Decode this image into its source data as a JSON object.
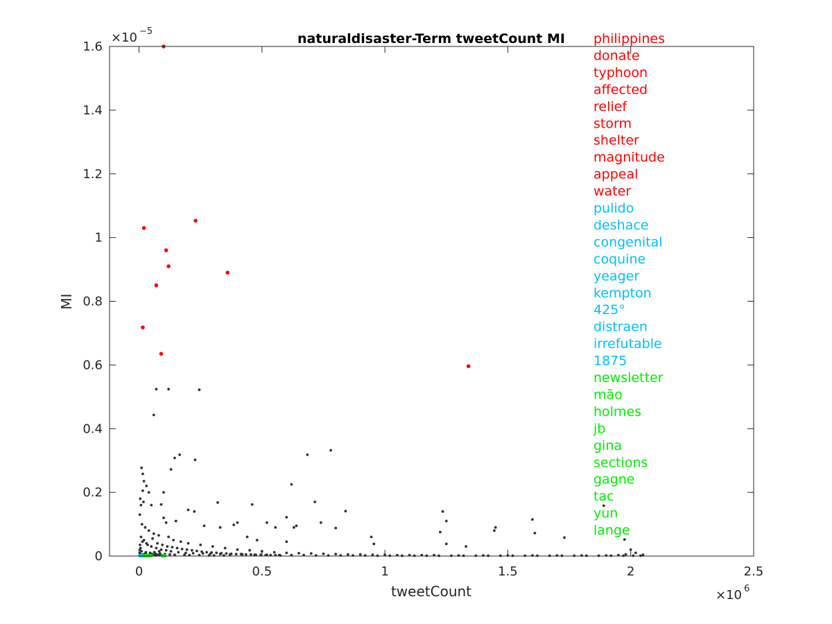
{
  "chart_data": {
    "type": "scatter",
    "title": "naturaldisaster-Term tweetCount MI",
    "xlabel": "tweetCount",
    "ylabel": "MI",
    "x_multiplier": "×10",
    "x_exponent": "6",
    "y_multiplier": "×10",
    "y_exponent": "−5",
    "xlim": [
      -0.12,
      2.5
    ],
    "ylim": [
      0,
      1.6
    ],
    "x_ticks": [
      0,
      0.5,
      1,
      1.5,
      2,
      2.5
    ],
    "x_tick_labels": [
      "0",
      "0.5",
      "1",
      "1.5",
      "2",
      "2.5"
    ],
    "y_ticks": [
      0,
      0.2,
      0.4,
      0.6,
      0.8,
      1,
      1.2,
      1.4,
      1.6
    ],
    "y_tick_labels": [
      "0",
      "0.2",
      "0.4",
      "0.6",
      "0.8",
      "1",
      "1.2",
      "1.4",
      "1.6"
    ],
    "colors": {
      "red": "#ff0000",
      "cyan": "#00bfff",
      "green": "#00ee00",
      "gray": "#333333"
    },
    "series": [
      {
        "group": "red",
        "points": [
          [
            0.1,
            1.6
          ],
          [
            0.02,
            1.03
          ],
          [
            0.23,
            1.053
          ],
          [
            0.11,
            0.96
          ],
          [
            0.12,
            0.91
          ],
          [
            0.36,
            0.89
          ],
          [
            0.07,
            0.85
          ],
          [
            0.015,
            0.718
          ],
          [
            0.09,
            0.635
          ],
          [
            1.34,
            0.596
          ]
        ]
      },
      {
        "group": "cyan",
        "points": [
          [
            0.003,
            0.001
          ],
          [
            0.006,
            0.001
          ],
          [
            0.009,
            0.001
          ],
          [
            0.012,
            0.001
          ],
          [
            0.015,
            0.001
          ],
          [
            0.018,
            0.001
          ],
          [
            0.021,
            0.001
          ],
          [
            0.024,
            0.001
          ],
          [
            0.027,
            0.001
          ],
          [
            0.03,
            0.001
          ]
        ]
      },
      {
        "group": "green",
        "points": [
          [
            0.02,
            0.001
          ],
          [
            0.03,
            0.001
          ],
          [
            0.04,
            0.001
          ],
          [
            0.045,
            0.001
          ],
          [
            0.1,
            0.001
          ],
          [
            0.025,
            0.001
          ],
          [
            0.035,
            0.001
          ],
          [
            0.05,
            0.001
          ],
          [
            0.095,
            0.001
          ],
          [
            0.105,
            0.001
          ]
        ]
      },
      {
        "group": "gray",
        "points": [
          [
            0.07,
            0.524
          ],
          [
            0.12,
            0.524
          ],
          [
            0.245,
            0.522
          ],
          [
            0.06,
            0.443
          ],
          [
            0.165,
            0.318
          ],
          [
            0.145,
            0.308
          ],
          [
            0.228,
            0.302
          ],
          [
            0.13,
            0.272
          ],
          [
            0.685,
            0.318
          ],
          [
            0.78,
            0.332
          ],
          [
            0.62,
            0.225
          ],
          [
            0.715,
            0.17
          ],
          [
            0.32,
            0.168
          ],
          [
            0.46,
            0.162
          ],
          [
            1.235,
            0.14
          ],
          [
            1.25,
            0.11
          ],
          [
            1.45,
            0.09
          ],
          [
            1.6,
            0.115
          ],
          [
            1.61,
            0.072
          ],
          [
            1.445,
            0.08
          ],
          [
            1.73,
            0.058
          ],
          [
            1.89,
            0.158
          ],
          [
            1.975,
            0.052
          ],
          [
            0.84,
            0.141
          ],
          [
            0.8,
            0.088
          ],
          [
            0.6,
            0.122
          ],
          [
            0.555,
            0.09
          ],
          [
            0.945,
            0.06
          ],
          [
            0.955,
            0.038
          ],
          [
            1.225,
            0.075
          ],
          [
            1.25,
            0.038
          ],
          [
            1.33,
            0.03
          ],
          [
            0.01,
            0.277
          ],
          [
            0.015,
            0.258
          ],
          [
            0.02,
            0.235
          ],
          [
            0.03,
            0.22
          ],
          [
            0.015,
            0.205
          ],
          [
            0.04,
            0.2
          ],
          [
            0.1,
            0.2
          ],
          [
            0.005,
            0.18
          ],
          [
            0.008,
            0.16
          ],
          [
            0.018,
            0.17
          ],
          [
            0.05,
            0.16
          ],
          [
            0.09,
            0.162
          ],
          [
            0.1,
            0.12
          ],
          [
            0.11,
            0.105
          ],
          [
            0.15,
            0.11
          ],
          [
            0.2,
            0.145
          ],
          [
            0.225,
            0.14
          ],
          [
            0.265,
            0.095
          ],
          [
            0.4,
            0.105
          ],
          [
            0.33,
            0.09
          ],
          [
            0.52,
            0.105
          ],
          [
            0.64,
            0.095
          ],
          [
            0.74,
            0.105
          ],
          [
            0.385,
            0.098
          ],
          [
            0.63,
            0.09
          ],
          [
            0.44,
            0.06
          ],
          [
            0.48,
            0.05
          ],
          [
            0.6,
            0.045
          ],
          [
            0.003,
            0.13
          ],
          [
            0.012,
            0.1
          ],
          [
            0.025,
            0.09
          ],
          [
            0.04,
            0.08
          ],
          [
            0.06,
            0.07
          ],
          [
            0.08,
            0.065
          ],
          [
            0.12,
            0.06
          ],
          [
            0.14,
            0.05
          ],
          [
            0.17,
            0.045
          ],
          [
            0.2,
            0.04
          ],
          [
            0.25,
            0.035
          ],
          [
            0.3,
            0.03
          ],
          [
            0.35,
            0.025
          ],
          [
            0.4,
            0.02
          ],
          [
            0.45,
            0.018
          ],
          [
            0.5,
            0.015
          ],
          [
            0.55,
            0.012
          ],
          [
            0.6,
            0.01
          ],
          [
            0.65,
            0.009
          ],
          [
            0.7,
            0.008
          ],
          [
            0.75,
            0.007
          ],
          [
            0.8,
            0.006
          ],
          [
            0.85,
            0.005
          ],
          [
            0.9,
            0.005
          ],
          [
            0.95,
            0.004
          ],
          [
            1.0,
            0.004
          ],
          [
            1.05,
            0.003
          ],
          [
            1.1,
            0.003
          ],
          [
            1.15,
            0.003
          ],
          [
            1.2,
            0.003
          ],
          [
            1.3,
            0.002
          ],
          [
            1.4,
            0.002
          ],
          [
            1.5,
            0.002
          ],
          [
            1.6,
            0.002
          ],
          [
            1.7,
            0.002
          ],
          [
            1.8,
            0.002
          ],
          [
            1.9,
            0.002
          ],
          [
            1.95,
            0.003
          ],
          [
            2.0,
            0.02
          ],
          [
            2.02,
            0.01
          ],
          [
            2.05,
            0.004
          ],
          [
            1.98,
            0.005
          ],
          [
            0.02,
            0.05
          ],
          [
            0.03,
            0.04
          ],
          [
            0.05,
            0.03
          ],
          [
            0.07,
            0.025
          ],
          [
            0.09,
            0.02
          ],
          [
            0.11,
            0.018
          ],
          [
            0.13,
            0.015
          ],
          [
            0.16,
            0.012
          ],
          [
            0.19,
            0.01
          ],
          [
            0.22,
            0.009
          ],
          [
            0.26,
            0.008
          ],
          [
            0.29,
            0.007
          ],
          [
            0.33,
            0.006
          ],
          [
            0.37,
            0.005
          ],
          [
            0.42,
            0.005
          ],
          [
            0.47,
            0.004
          ],
          [
            0.52,
            0.004
          ],
          [
            0.57,
            0.003
          ],
          [
            0.62,
            0.003
          ],
          [
            0.67,
            0.003
          ],
          [
            0.72,
            0.002
          ],
          [
            0.77,
            0.002
          ],
          [
            0.82,
            0.002
          ],
          [
            0.87,
            0.002
          ],
          [
            0.92,
            0.002
          ],
          [
            0.97,
            0.001
          ],
          [
            1.02,
            0.001
          ],
          [
            1.07,
            0.001
          ],
          [
            1.12,
            0.001
          ],
          [
            1.17,
            0.001
          ],
          [
            1.22,
            0.001
          ],
          [
            1.27,
            0.001
          ],
          [
            1.32,
            0.001
          ],
          [
            1.37,
            0.001
          ],
          [
            1.42,
            0.001
          ],
          [
            1.47,
            0.001
          ],
          [
            1.52,
            0.001
          ],
          [
            1.57,
            0.001
          ],
          [
            1.62,
            0.001
          ],
          [
            1.67,
            0.001
          ],
          [
            1.72,
            0.001
          ],
          [
            1.77,
            0.001
          ],
          [
            1.82,
            0.001
          ],
          [
            1.87,
            0.001
          ],
          [
            1.92,
            0.001
          ],
          [
            1.97,
            0.001
          ],
          [
            2.01,
            0.001
          ],
          [
            2.04,
            0.001
          ],
          [
            0.008,
            0.06
          ],
          [
            0.014,
            0.045
          ],
          [
            0.035,
            0.035
          ],
          [
            0.055,
            0.055
          ],
          [
            0.075,
            0.04
          ],
          [
            0.095,
            0.035
          ],
          [
            0.115,
            0.03
          ],
          [
            0.135,
            0.028
          ],
          [
            0.155,
            0.025
          ],
          [
            0.175,
            0.022
          ],
          [
            0.195,
            0.02
          ],
          [
            0.215,
            0.018
          ],
          [
            0.235,
            0.016
          ],
          [
            0.255,
            0.014
          ],
          [
            0.275,
            0.012
          ],
          [
            0.295,
            0.011
          ],
          [
            0.315,
            0.01
          ],
          [
            0.335,
            0.009
          ],
          [
            0.355,
            0.008
          ],
          [
            0.375,
            0.007
          ],
          [
            0.395,
            0.006
          ],
          [
            0.415,
            0.006
          ],
          [
            0.435,
            0.005
          ],
          [
            0.455,
            0.005
          ],
          [
            0.475,
            0.004
          ],
          [
            0.495,
            0.004
          ],
          [
            0.515,
            0.003
          ],
          [
            0.535,
            0.003
          ],
          [
            0.555,
            0.003
          ],
          [
            0.575,
            0.002
          ],
          [
            0.004,
            0.035
          ],
          [
            0.006,
            0.025
          ],
          [
            0.01,
            0.015
          ],
          [
            0.028,
            0.012
          ],
          [
            0.045,
            0.01
          ],
          [
            0.065,
            0.008
          ],
          [
            0.085,
            0.008
          ],
          [
            0.105,
            0.006
          ],
          [
            0.125,
            0.005
          ],
          [
            0.145,
            0.004
          ],
          [
            0.185,
            0.004
          ],
          [
            0.205,
            0.003
          ],
          [
            0.245,
            0.003
          ],
          [
            0.285,
            0.002
          ],
          [
            0.305,
            0.002
          ],
          [
            0.345,
            0.002
          ],
          [
            0.002,
            0.01
          ],
          [
            0.003,
            0.02
          ],
          [
            0.007,
            0.005
          ],
          [
            0.011,
            0.003
          ],
          [
            0.016,
            0.004
          ],
          [
            0.022,
            0.006
          ],
          [
            0.026,
            0.008
          ],
          [
            0.032,
            0.003
          ],
          [
            0.038,
            0.002
          ],
          [
            0.042,
            0.004
          ],
          [
            0.048,
            0.002
          ],
          [
            0.052,
            0.006
          ],
          [
            0.058,
            0.003
          ],
          [
            0.062,
            0.012
          ],
          [
            0.068,
            0.002
          ],
          [
            0.072,
            0.005
          ],
          [
            0.078,
            0.003
          ],
          [
            0.082,
            0.015
          ],
          [
            0.088,
            0.004
          ],
          [
            0.092,
            0.002
          ]
        ]
      }
    ],
    "legend_labels": [
      {
        "text": "philippines",
        "group": "red"
      },
      {
        "text": "donate",
        "group": "red"
      },
      {
        "text": "typhoon",
        "group": "red"
      },
      {
        "text": "affected",
        "group": "red"
      },
      {
        "text": "relief",
        "group": "red"
      },
      {
        "text": "storm",
        "group": "red"
      },
      {
        "text": "shelter",
        "group": "red"
      },
      {
        "text": "magnitude",
        "group": "red"
      },
      {
        "text": "appeal",
        "group": "red"
      },
      {
        "text": "water",
        "group": "red"
      },
      {
        "text": "pulido",
        "group": "cyan"
      },
      {
        "text": "deshace",
        "group": "cyan"
      },
      {
        "text": "congenital",
        "group": "cyan"
      },
      {
        "text": "coquine",
        "group": "cyan"
      },
      {
        "text": "yeager",
        "group": "cyan"
      },
      {
        "text": "kempton",
        "group": "cyan"
      },
      {
        "text": "425°",
        "group": "cyan"
      },
      {
        "text": "distraen",
        "group": "cyan"
      },
      {
        "text": "irrefutable",
        "group": "cyan"
      },
      {
        "text": "1875",
        "group": "cyan"
      },
      {
        "text": "newsletter",
        "group": "green"
      },
      {
        "text": "mão",
        "group": "green"
      },
      {
        "text": "holmes",
        "group": "green"
      },
      {
        "text": "jb",
        "group": "green"
      },
      {
        "text": "gina",
        "group": "green"
      },
      {
        "text": "sections",
        "group": "green"
      },
      {
        "text": "gagne",
        "group": "green"
      },
      {
        "text": "tac",
        "group": "green"
      },
      {
        "text": "yun",
        "group": "green"
      },
      {
        "text": "lange",
        "group": "green"
      }
    ]
  }
}
